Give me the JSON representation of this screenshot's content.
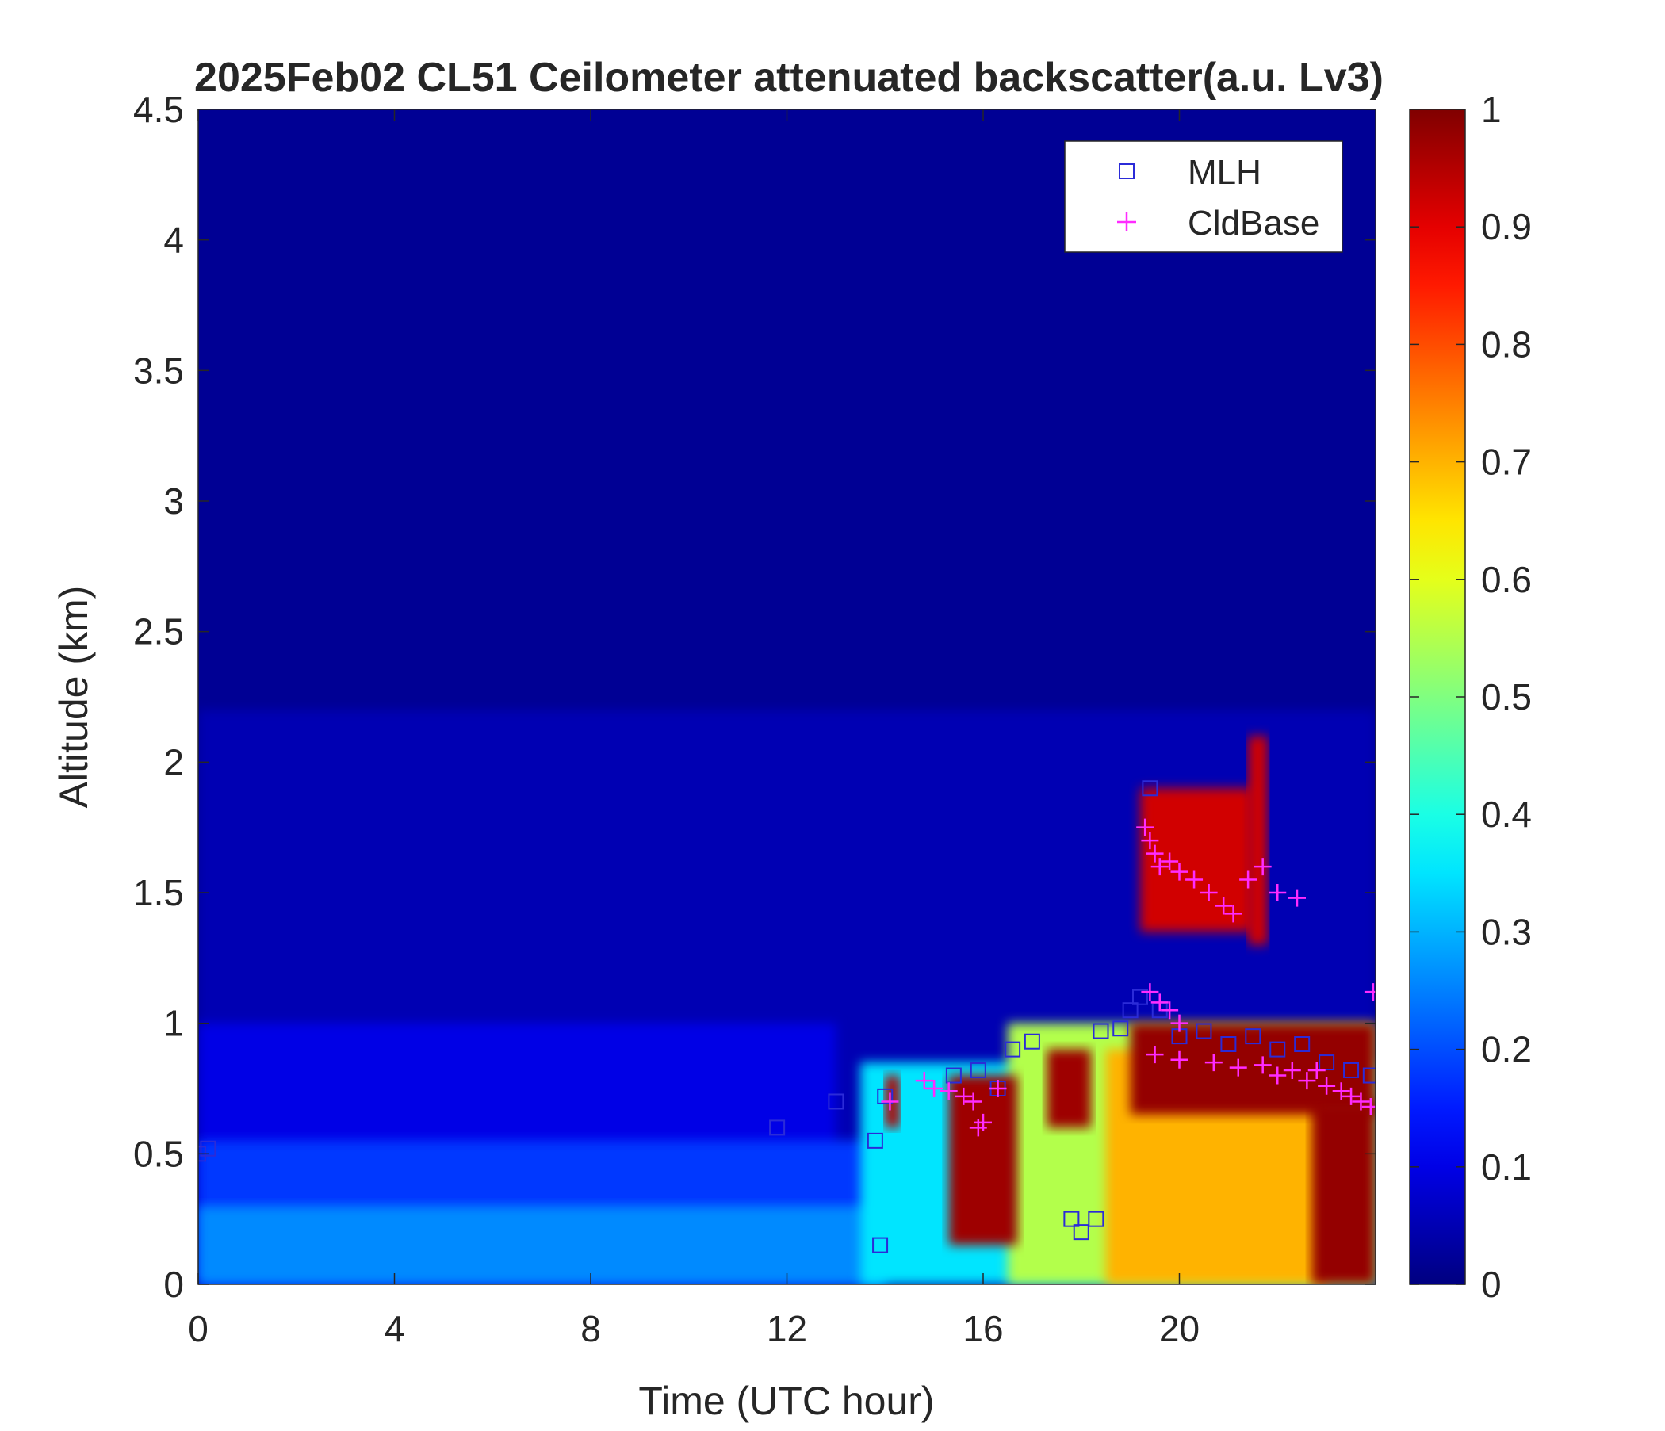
{
  "chart_data": {
    "type": "heatmap",
    "title": "2025Feb02 CL51 Ceilometer attenuated backscatter(a.u. Lv3)",
    "xlabel": "Time (UTC hour)",
    "ylabel": "Altitude (km)",
    "xlim": [
      0,
      24
    ],
    "ylim": [
      0,
      4.5
    ],
    "x_ticks": [
      0,
      4,
      8,
      12,
      16,
      20
    ],
    "x_tick_labels": [
      "0",
      "4",
      "8",
      "12",
      "16",
      "20"
    ],
    "y_ticks": [
      0,
      0.5,
      1,
      1.5,
      2,
      2.5,
      3,
      3.5,
      4,
      4.5
    ],
    "y_tick_labels": [
      "0",
      "0.5",
      "1",
      "1.5",
      "2",
      "2.5",
      "3",
      "3.5",
      "4",
      "4.5"
    ],
    "colorbar": {
      "colormap": "jet",
      "range": [
        0,
        1
      ],
      "ticks": [
        0,
        0.1,
        0.2,
        0.3,
        0.4,
        0.5,
        0.6,
        0.7,
        0.8,
        0.9,
        1
      ],
      "tick_labels": [
        "0",
        "0.1",
        "0.2",
        "0.3",
        "0.4",
        "0.5",
        "0.6",
        "0.7",
        "0.8",
        "0.9",
        "1"
      ]
    },
    "legend": {
      "position": "top-right",
      "entries": [
        {
          "label": "MLH",
          "marker": "square",
          "color": "#2b2bd8"
        },
        {
          "label": "CldBase",
          "marker": "plus",
          "color": "#ff2bff"
        }
      ]
    },
    "backscatter_regions": [
      {
        "x0": 0,
        "x1": 24,
        "y0": 0,
        "y1": 4.5,
        "value": 0.02
      },
      {
        "x0": 0,
        "x1": 24,
        "y0": 0,
        "y1": 2.2,
        "value": 0.05
      },
      {
        "x0": 0,
        "x1": 13,
        "y0": 0,
        "y1": 1.0,
        "value": 0.1
      },
      {
        "x0": 0,
        "x1": 14,
        "y0": 0,
        "y1": 0.55,
        "value": 0.18
      },
      {
        "x0": 0,
        "x1": 14,
        "y0": 0,
        "y1": 0.3,
        "value": 0.26
      },
      {
        "x0": 13.5,
        "x1": 24,
        "y0": 0,
        "y1": 0.85,
        "value": 0.35
      },
      {
        "x0": 16.5,
        "x1": 24,
        "y0": 0,
        "y1": 1.0,
        "value": 0.55
      },
      {
        "x0": 18.5,
        "x1": 23,
        "y0": 0,
        "y1": 0.9,
        "value": 0.7
      },
      {
        "x0": 14,
        "x1": 14.3,
        "y0": 0.6,
        "y1": 0.8,
        "value": 0.95
      },
      {
        "x0": 15.3,
        "x1": 16.7,
        "y0": 0.15,
        "y1": 0.8,
        "value": 0.97
      },
      {
        "x0": 17.3,
        "x1": 18.2,
        "y0": 0.6,
        "y1": 0.9,
        "value": 0.97
      },
      {
        "x0": 19.0,
        "x1": 24,
        "y0": 0.65,
        "y1": 1.0,
        "value": 0.98
      },
      {
        "x0": 22.7,
        "x1": 24,
        "y0": 0,
        "y1": 0.7,
        "value": 0.98
      },
      {
        "x0": 19.2,
        "x1": 21.5,
        "y0": 1.35,
        "y1": 1.9,
        "value": 0.92
      },
      {
        "x0": 21.4,
        "x1": 21.8,
        "y0": 1.3,
        "y1": 2.1,
        "value": 0.92
      }
    ],
    "series": [
      {
        "name": "MLH",
        "marker": "square",
        "color": "#2b2bd8",
        "points": [
          {
            "x": 0.0,
            "y": 0.5
          },
          {
            "x": 0.2,
            "y": 0.52
          },
          {
            "x": 11.8,
            "y": 0.6
          },
          {
            "x": 13.0,
            "y": 0.7
          },
          {
            "x": 13.8,
            "y": 0.55
          },
          {
            "x": 13.9,
            "y": 0.15
          },
          {
            "x": 14.0,
            "y": 0.72
          },
          {
            "x": 15.4,
            "y": 0.8
          },
          {
            "x": 15.9,
            "y": 0.82
          },
          {
            "x": 16.3,
            "y": 0.75
          },
          {
            "x": 16.6,
            "y": 0.9
          },
          {
            "x": 17.0,
            "y": 0.93
          },
          {
            "x": 17.8,
            "y": 0.25
          },
          {
            "x": 18.0,
            "y": 0.2
          },
          {
            "x": 18.3,
            "y": 0.25
          },
          {
            "x": 18.4,
            "y": 0.97
          },
          {
            "x": 18.8,
            "y": 0.98
          },
          {
            "x": 19.0,
            "y": 1.05
          },
          {
            "x": 19.2,
            "y": 1.1
          },
          {
            "x": 19.4,
            "y": 1.9
          },
          {
            "x": 19.6,
            "y": 1.05
          },
          {
            "x": 20.0,
            "y": 0.95
          },
          {
            "x": 20.5,
            "y": 0.97
          },
          {
            "x": 21.0,
            "y": 0.92
          },
          {
            "x": 21.5,
            "y": 0.95
          },
          {
            "x": 22.0,
            "y": 0.9
          },
          {
            "x": 22.5,
            "y": 0.92
          },
          {
            "x": 23.0,
            "y": 0.85
          },
          {
            "x": 23.5,
            "y": 0.82
          },
          {
            "x": 23.9,
            "y": 0.8
          }
        ]
      },
      {
        "name": "CldBase",
        "marker": "plus",
        "color": "#ff2bff",
        "points": [
          {
            "x": 14.1,
            "y": 0.7
          },
          {
            "x": 14.8,
            "y": 0.78
          },
          {
            "x": 15.0,
            "y": 0.75
          },
          {
            "x": 15.3,
            "y": 0.74
          },
          {
            "x": 15.6,
            "y": 0.72
          },
          {
            "x": 15.8,
            "y": 0.7
          },
          {
            "x": 15.9,
            "y": 0.6
          },
          {
            "x": 16.0,
            "y": 0.62
          },
          {
            "x": 16.3,
            "y": 0.75
          },
          {
            "x": 19.3,
            "y": 1.75
          },
          {
            "x": 19.4,
            "y": 1.7
          },
          {
            "x": 19.5,
            "y": 1.65
          },
          {
            "x": 19.6,
            "y": 1.6
          },
          {
            "x": 19.8,
            "y": 1.62
          },
          {
            "x": 20.0,
            "y": 1.58
          },
          {
            "x": 20.3,
            "y": 1.55
          },
          {
            "x": 20.6,
            "y": 1.5
          },
          {
            "x": 20.9,
            "y": 1.45
          },
          {
            "x": 21.1,
            "y": 1.42
          },
          {
            "x": 21.4,
            "y": 1.55
          },
          {
            "x": 21.7,
            "y": 1.6
          },
          {
            "x": 22.0,
            "y": 1.5
          },
          {
            "x": 22.4,
            "y": 1.48
          },
          {
            "x": 19.4,
            "y": 1.12
          },
          {
            "x": 19.6,
            "y": 1.08
          },
          {
            "x": 19.8,
            "y": 1.05
          },
          {
            "x": 20.0,
            "y": 1.0
          },
          {
            "x": 19.5,
            "y": 0.88
          },
          {
            "x": 20.0,
            "y": 0.86
          },
          {
            "x": 20.7,
            "y": 0.85
          },
          {
            "x": 21.2,
            "y": 0.83
          },
          {
            "x": 21.7,
            "y": 0.84
          },
          {
            "x": 22.0,
            "y": 0.8
          },
          {
            "x": 22.3,
            "y": 0.82
          },
          {
            "x": 22.6,
            "y": 0.78
          },
          {
            "x": 22.8,
            "y": 0.82
          },
          {
            "x": 23.0,
            "y": 0.76
          },
          {
            "x": 23.3,
            "y": 0.74
          },
          {
            "x": 23.5,
            "y": 0.72
          },
          {
            "x": 23.7,
            "y": 0.7
          },
          {
            "x": 23.9,
            "y": 0.68
          },
          {
            "x": 23.95,
            "y": 1.12
          }
        ]
      }
    ]
  }
}
